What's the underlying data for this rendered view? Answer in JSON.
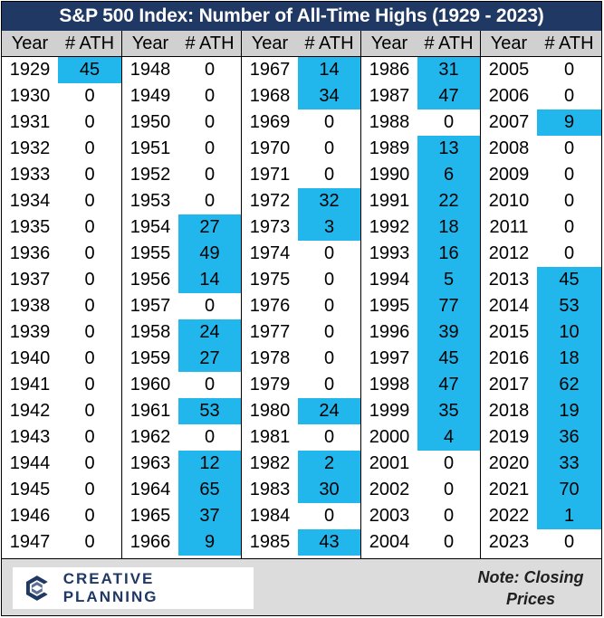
{
  "title": "S&P 500 Index: Number of All-Time Highs (1929 - 2023)",
  "header": {
    "year": "Year",
    "ath": "# ATH"
  },
  "chart_data": {
    "type": "table",
    "title": "S&P 500 Index: Number of All-Time Highs (1929 - 2023)",
    "columns": [
      "Year",
      "# ATH"
    ],
    "highlight_color": "#22b7ec",
    "column_groups": [
      [
        [
          "1929",
          "45"
        ],
        [
          "1930",
          "0"
        ],
        [
          "1931",
          "0"
        ],
        [
          "1932",
          "0"
        ],
        [
          "1933",
          "0"
        ],
        [
          "1934",
          "0"
        ],
        [
          "1935",
          "0"
        ],
        [
          "1936",
          "0"
        ],
        [
          "1937",
          "0"
        ],
        [
          "1938",
          "0"
        ],
        [
          "1939",
          "0"
        ],
        [
          "1940",
          "0"
        ],
        [
          "1941",
          "0"
        ],
        [
          "1942",
          "0"
        ],
        [
          "1943",
          "0"
        ],
        [
          "1944",
          "0"
        ],
        [
          "1945",
          "0"
        ],
        [
          "1946",
          "0"
        ],
        [
          "1947",
          "0"
        ]
      ],
      [
        [
          "1948",
          "0"
        ],
        [
          "1949",
          "0"
        ],
        [
          "1950",
          "0"
        ],
        [
          "1951",
          "0"
        ],
        [
          "1952",
          "0"
        ],
        [
          "1953",
          "0"
        ],
        [
          "1954",
          "27"
        ],
        [
          "1955",
          "49"
        ],
        [
          "1956",
          "14"
        ],
        [
          "1957",
          "0"
        ],
        [
          "1958",
          "24"
        ],
        [
          "1959",
          "27"
        ],
        [
          "1960",
          "0"
        ],
        [
          "1961",
          "53"
        ],
        [
          "1962",
          "0"
        ],
        [
          "1963",
          "12"
        ],
        [
          "1964",
          "65"
        ],
        [
          "1965",
          "37"
        ],
        [
          "1966",
          "9"
        ]
      ],
      [
        [
          "1967",
          "14"
        ],
        [
          "1968",
          "34"
        ],
        [
          "1969",
          "0"
        ],
        [
          "1970",
          "0"
        ],
        [
          "1971",
          "0"
        ],
        [
          "1972",
          "32"
        ],
        [
          "1973",
          "3"
        ],
        [
          "1974",
          "0"
        ],
        [
          "1975",
          "0"
        ],
        [
          "1976",
          "0"
        ],
        [
          "1977",
          "0"
        ],
        [
          "1978",
          "0"
        ],
        [
          "1979",
          "0"
        ],
        [
          "1980",
          "24"
        ],
        [
          "1981",
          "0"
        ],
        [
          "1982",
          "2"
        ],
        [
          "1983",
          "30"
        ],
        [
          "1984",
          "0"
        ],
        [
          "1985",
          "43"
        ]
      ],
      [
        [
          "1986",
          "31"
        ],
        [
          "1987",
          "47"
        ],
        [
          "1988",
          "0"
        ],
        [
          "1989",
          "13"
        ],
        [
          "1990",
          "6"
        ],
        [
          "1991",
          "22"
        ],
        [
          "1992",
          "18"
        ],
        [
          "1993",
          "16"
        ],
        [
          "1994",
          "5"
        ],
        [
          "1995",
          "77"
        ],
        [
          "1996",
          "39"
        ],
        [
          "1997",
          "45"
        ],
        [
          "1998",
          "47"
        ],
        [
          "1999",
          "35"
        ],
        [
          "2000",
          "4"
        ],
        [
          "2001",
          "0"
        ],
        [
          "2002",
          "0"
        ],
        [
          "2003",
          "0"
        ],
        [
          "2004",
          "0"
        ]
      ],
      [
        [
          "2005",
          "0"
        ],
        [
          "2006",
          "0"
        ],
        [
          "2007",
          "9"
        ],
        [
          "2008",
          "0"
        ],
        [
          "2009",
          "0"
        ],
        [
          "2010",
          "0"
        ],
        [
          "2011",
          "0"
        ],
        [
          "2012",
          "0"
        ],
        [
          "2013",
          "45"
        ],
        [
          "2014",
          "53"
        ],
        [
          "2015",
          "10"
        ],
        [
          "2016",
          "18"
        ],
        [
          "2017",
          "62"
        ],
        [
          "2018",
          "19"
        ],
        [
          "2019",
          "36"
        ],
        [
          "2020",
          "33"
        ],
        [
          "2021",
          "70"
        ],
        [
          "2022",
          "1"
        ],
        [
          "2023",
          "0"
        ]
      ]
    ]
  },
  "footer": {
    "logo_text": "CREATIVE PLANNING",
    "logo_icon": "creative-planning-logo-icon",
    "note_line1": "Note: Closing",
    "note_line2": "Prices"
  }
}
